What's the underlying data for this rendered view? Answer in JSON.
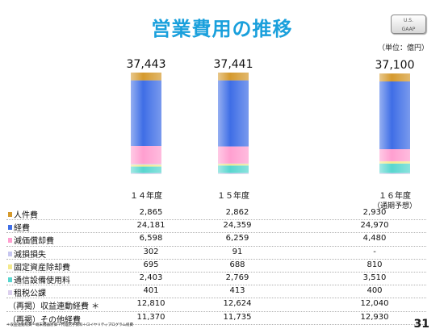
{
  "title": "営業費用の推移",
  "badge": {
    "line1": "U.S.",
    "line2": "GAAP"
  },
  "unit": "（単位：億円）",
  "chart_data": {
    "type": "bar",
    "stacked": true,
    "categories": [
      "１４年度",
      "１５年度",
      "１６年度"
    ],
    "category_sublabels": [
      "",
      "",
      "（通期予想）"
    ],
    "totals": [
      "37,443",
      "37,441",
      "37,100"
    ],
    "ylim": [
      0,
      37443
    ],
    "series": [
      {
        "name": "人件費",
        "color": "#d59a2e",
        "values": [
          2865,
          2862,
          2930
        ],
        "labels": [
          "2,865",
          "2,862",
          "2,930"
        ]
      },
      {
        "name": "経費",
        "color": "#3f6ee6",
        "values": [
          24181,
          24359,
          24970
        ],
        "labels": [
          "24,181",
          "24,359",
          "24,970"
        ]
      },
      {
        "name": "減価償却費",
        "color": "#ff9fd0",
        "values": [
          6598,
          6259,
          4480
        ],
        "labels": [
          "6,598",
          "6,259",
          "4,480"
        ]
      },
      {
        "name": "減損損失",
        "color": "#c7c7f0",
        "values": [
          302,
          91,
          0
        ],
        "labels": [
          "302",
          "91",
          "-"
        ]
      },
      {
        "name": "固定資産除却費",
        "color": "#f3e98c",
        "values": [
          695,
          688,
          810
        ],
        "labels": [
          "695",
          "688",
          "810"
        ]
      },
      {
        "name": "通信設備使用料",
        "color": "#58d6cf",
        "values": [
          2403,
          2769,
          3510
        ],
        "labels": [
          "2,403",
          "2,769",
          "3,510"
        ]
      },
      {
        "name": "租税公課",
        "color": "#dcd0ee",
        "values": [
          401,
          413,
          400
        ],
        "labels": [
          "401",
          "413",
          "400"
        ]
      }
    ],
    "memo_rows": [
      {
        "name": "（再掲）収益連動経費 ＊",
        "labels": [
          "12,810",
          "12,624",
          "12,040"
        ]
      },
      {
        "name": "（再掲）その他経費",
        "labels": [
          "11,370",
          "11,735",
          "12,930"
        ]
      }
    ]
  },
  "footnote": "＊収益連動経費＝端末機器原価＋代理店手数料＋ロイヤリティプログラム経費",
  "page_number": "31"
}
